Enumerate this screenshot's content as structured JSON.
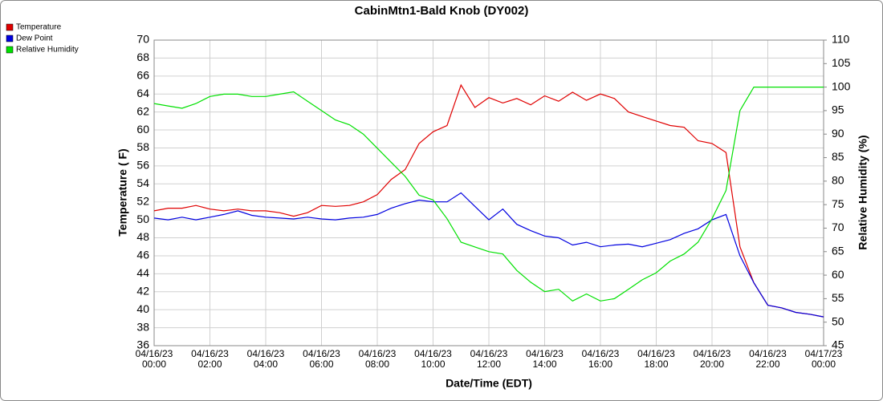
{
  "chart_data": {
    "type": "line",
    "title": "CabinMtn1-Bald Knob (DY002)",
    "x_label": "Date/Time (EDT)",
    "y_label": "Temperature ( F)",
    "y2_label": "Relative Humidity (%)",
    "x": [
      "04/16/23 00:00",
      "04/16/23 00:30",
      "04/16/23 01:00",
      "04/16/23 01:30",
      "04/16/23 02:00",
      "04/16/23 02:30",
      "04/16/23 03:00",
      "04/16/23 03:30",
      "04/16/23 04:00",
      "04/16/23 04:30",
      "04/16/23 05:00",
      "04/16/23 05:30",
      "04/16/23 06:00",
      "04/16/23 06:30",
      "04/16/23 07:00",
      "04/16/23 07:30",
      "04/16/23 08:00",
      "04/16/23 08:30",
      "04/16/23 09:00",
      "04/16/23 09:30",
      "04/16/23 10:00",
      "04/16/23 10:30",
      "04/16/23 11:00",
      "04/16/23 11:30",
      "04/16/23 12:00",
      "04/16/23 12:30",
      "04/16/23 13:00",
      "04/16/23 13:30",
      "04/16/23 14:00",
      "04/16/23 14:30",
      "04/16/23 15:00",
      "04/16/23 15:30",
      "04/16/23 16:00",
      "04/16/23 16:30",
      "04/16/23 17:00",
      "04/16/23 17:30",
      "04/16/23 18:00",
      "04/16/23 18:30",
      "04/16/23 19:00",
      "04/16/23 19:30",
      "04/16/23 20:00",
      "04/16/23 20:30",
      "04/16/23 21:00",
      "04/16/23 21:30",
      "04/16/23 22:00",
      "04/16/23 22:30",
      "04/16/23 23:00",
      "04/16/23 23:30",
      "04/17/23 00:00"
    ],
    "series": [
      {
        "name": "Temperature",
        "color": "#e00000",
        "values": [
          51.0,
          51.3,
          51.3,
          51.6,
          51.2,
          51.0,
          51.2,
          51.0,
          51.0,
          50.8,
          50.4,
          50.8,
          51.6,
          51.5,
          51.6,
          52.0,
          52.8,
          54.5,
          55.6,
          58.5,
          59.8,
          60.5,
          65.0,
          62.5,
          63.6,
          63.0,
          63.5,
          62.8,
          63.8,
          63.2,
          64.2,
          63.3,
          64.0,
          63.5,
          62.0,
          61.5,
          61.0,
          60.5,
          60.3,
          58.8,
          58.5,
          57.5,
          47.0,
          43.0,
          40.5,
          40.2,
          39.7,
          39.5,
          39.2
        ]
      },
      {
        "name": "Dew Point",
        "color": "#0000e0",
        "values": [
          50.2,
          50.0,
          50.3,
          50.0,
          50.3,
          50.6,
          51.0,
          50.5,
          50.3,
          50.2,
          50.1,
          50.3,
          50.1,
          50.0,
          50.2,
          50.3,
          50.6,
          51.3,
          51.8,
          52.2,
          52.0,
          52.0,
          53.0,
          51.5,
          50.0,
          51.2,
          49.5,
          48.8,
          48.2,
          48.0,
          47.2,
          47.5,
          47.0,
          47.2,
          47.3,
          47.0,
          47.4,
          47.8,
          48.5,
          49.0,
          50.0,
          50.6,
          46.0,
          43.0,
          40.5,
          40.2,
          39.7,
          39.5,
          39.2
        ]
      },
      {
        "name": "Relative Humidity",
        "color": "#00e000",
        "axis": "y2",
        "values": [
          96.5,
          96,
          95.5,
          96.5,
          98,
          98.5,
          98.5,
          98,
          98,
          98.5,
          99,
          97,
          95,
          93,
          92,
          90,
          87,
          84,
          81,
          77,
          76,
          72,
          67,
          66,
          65,
          64.5,
          61,
          58.5,
          56.5,
          57,
          54.5,
          56,
          54.5,
          55,
          57,
          59,
          60.5,
          63,
          64.5,
          67,
          72,
          78,
          95,
          100,
          100,
          100,
          100,
          100,
          100
        ]
      }
    ],
    "xlim": [
      "04/16/23 00:00",
      "04/17/23 00:00"
    ],
    "xticks": [
      "04/16/23 00:00",
      "04/16/23 02:00",
      "04/16/23 04:00",
      "04/16/23 06:00",
      "04/16/23 08:00",
      "04/16/23 10:00",
      "04/16/23 12:00",
      "04/16/23 14:00",
      "04/16/23 16:00",
      "04/16/23 18:00",
      "04/16/23 20:00",
      "04/16/23 22:00",
      "04/17/23 00:00"
    ],
    "ylim": [
      36,
      70
    ],
    "yticks": [
      36,
      38,
      40,
      42,
      44,
      46,
      48,
      50,
      52,
      54,
      56,
      58,
      60,
      62,
      64,
      66,
      68,
      70
    ],
    "y2lim": [
      45,
      110
    ],
    "y2ticks": [
      45,
      50,
      55,
      60,
      65,
      70,
      75,
      80,
      85,
      90,
      95,
      100,
      105,
      110
    ],
    "grid": true,
    "legend": "top-left"
  }
}
